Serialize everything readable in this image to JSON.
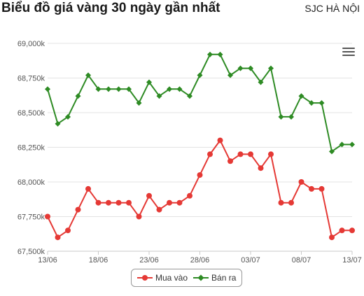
{
  "header": {
    "title": "Biểu đồ giá vàng 30 ngày gần nhất",
    "source": "SJC HÀ NỘI"
  },
  "chart_data": {
    "type": "line",
    "x": [
      "13/06",
      "14/06",
      "15/06",
      "16/06",
      "17/06",
      "18/06",
      "19/06",
      "20/06",
      "21/06",
      "22/06",
      "23/06",
      "24/06",
      "25/06",
      "26/06",
      "27/06",
      "28/06",
      "29/06",
      "30/06",
      "01/07",
      "02/07",
      "03/07",
      "04/07",
      "05/07",
      "06/07",
      "07/07",
      "08/07",
      "09/07",
      "10/07",
      "11/07",
      "12/07",
      "13/07"
    ],
    "x_tick_labels": [
      "13/06",
      "18/06",
      "23/06",
      "28/06",
      "03/07",
      "08/07",
      "13/07"
    ],
    "y_ticks": [
      "67,500k",
      "67,750k",
      "68,000k",
      "68,250k",
      "68,500k",
      "68,750k",
      "69,000k"
    ],
    "y_tick_values": [
      67500,
      67750,
      68000,
      68250,
      68500,
      68750,
      69000
    ],
    "ylim": [
      67500,
      69000
    ],
    "grid": true,
    "legend_position": "bottom-center",
    "series": [
      {
        "name": "Mua vào",
        "color": "#e53935",
        "marker": "circle",
        "values": [
          67750,
          67600,
          67650,
          67800,
          67950,
          67850,
          67850,
          67850,
          67850,
          67750,
          67900,
          67800,
          67850,
          67850,
          67900,
          68050,
          68200,
          68300,
          68150,
          68200,
          68200,
          68100,
          68200,
          67850,
          67850,
          68000,
          67950,
          67950,
          67600,
          67650,
          67650
        ]
      },
      {
        "name": "Bán ra",
        "color": "#2e8b24",
        "marker": "diamond",
        "values": [
          68670,
          68420,
          68470,
          68620,
          68770,
          68670,
          68670,
          68670,
          68670,
          68570,
          68720,
          68620,
          68670,
          68670,
          68620,
          68770,
          68920,
          68920,
          68770,
          68820,
          68820,
          68720,
          68820,
          68470,
          68470,
          68620,
          68570,
          68570,
          68220,
          68270,
          68270
        ]
      }
    ]
  }
}
